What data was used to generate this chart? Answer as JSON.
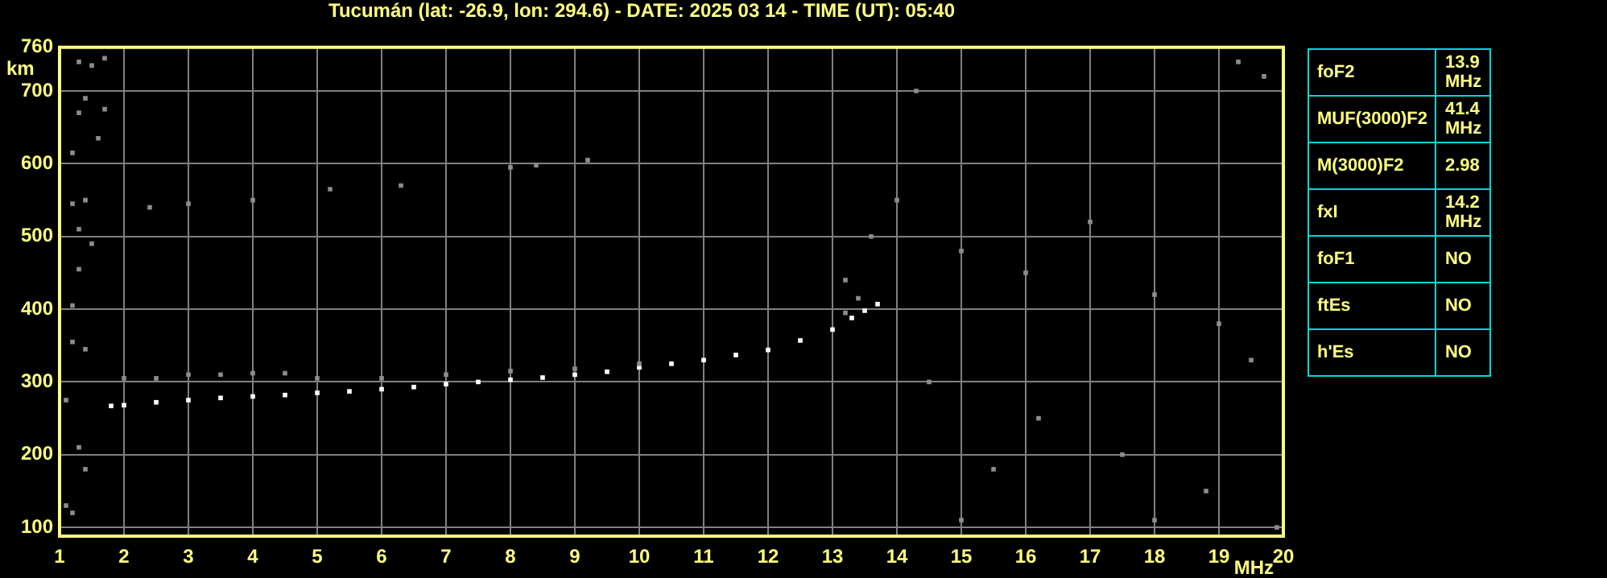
{
  "chart_data": [
    {
      "type": "scatter",
      "title": "Tucumán (lat: -26.9, lon: 294.6) - DATE: 2025 03 14 - TIME (UT): 05:40",
      "xlabel": "MHz",
      "ylabel": "km",
      "xlim": [
        1,
        20
      ],
      "xticks": [
        1,
        2,
        3,
        4,
        5,
        6,
        7,
        8,
        9,
        10,
        11,
        12,
        13,
        14,
        15,
        16,
        17,
        18,
        19,
        20
      ],
      "ylim": [
        88,
        760
      ],
      "yticks": [
        100,
        200,
        300,
        400,
        500,
        600,
        700,
        760
      ],
      "grid": true,
      "legend": false,
      "marker": "square",
      "series": [
        {
          "color": "#8c8c8c",
          "x": [
            1.3,
            1.5,
            1.4,
            1.3,
            1.7,
            1.7,
            1.6,
            1.2,
            1.2,
            1.4,
            1.3,
            1.5,
            1.3,
            1.2,
            1.2,
            1.4,
            1.1,
            1.3,
            1.4,
            1.1,
            1.2,
            2.4,
            3.0,
            4.0,
            5.2,
            6.3,
            8.0,
            8.4,
            9.2,
            2.0,
            2.5,
            3.0,
            3.5,
            4.0,
            4.5,
            5.0,
            6.0,
            7.0,
            8.0,
            9.0,
            10.0,
            13.2,
            13.4,
            13.2,
            14.0,
            15.0,
            16.0,
            17.0,
            18.0,
            19.0,
            14.5,
            16.2,
            17.5,
            18.8,
            19.5,
            15.5,
            19.7,
            19.3,
            14.3,
            13.6,
            15.0,
            18.0,
            19.9
          ],
          "values": [
            740,
            735,
            690,
            670,
            745,
            675,
            635,
            615,
            545,
            550,
            510,
            490,
            455,
            405,
            355,
            345,
            275,
            210,
            180,
            130,
            120,
            540,
            545,
            550,
            565,
            570,
            595,
            598,
            605,
            305,
            305,
            310,
            310,
            312,
            312,
            305,
            305,
            310,
            315,
            318,
            325,
            395,
            415,
            440,
            550,
            480,
            450,
            520,
            420,
            380,
            300,
            250,
            200,
            150,
            330,
            180,
            720,
            740,
            700,
            500,
            110,
            110,
            100
          ]
        },
        {
          "color": "#ffffff",
          "x": [
            1.8,
            2.0,
            2.5,
            3.0,
            3.5,
            4.0,
            4.5,
            5.0,
            5.5,
            6.0,
            6.5,
            7.0,
            7.5,
            8.0,
            8.5,
            9.0,
            9.5,
            10.0,
            10.5,
            11.0,
            11.5,
            12.0,
            12.5,
            13.0,
            13.3,
            13.5,
            13.7
          ],
          "values": [
            267,
            268,
            272,
            275,
            278,
            280,
            282,
            285,
            287,
            290,
            293,
            297,
            300,
            303,
            306,
            310,
            314,
            320,
            325,
            330,
            337,
            344,
            357,
            372,
            388,
            398,
            407
          ]
        }
      ]
    },
    {
      "type": "other",
      "annotations": [
        "foF2",
        "13.9 MHz",
        "MUF(3000)F2",
        "41.4 MHz",
        "M(3000)F2",
        "2.98",
        "fxI",
        "14.2 MHz",
        "foF1",
        "NO",
        "ftEs",
        "NO",
        "h'Es",
        "NO"
      ]
    }
  ]
}
